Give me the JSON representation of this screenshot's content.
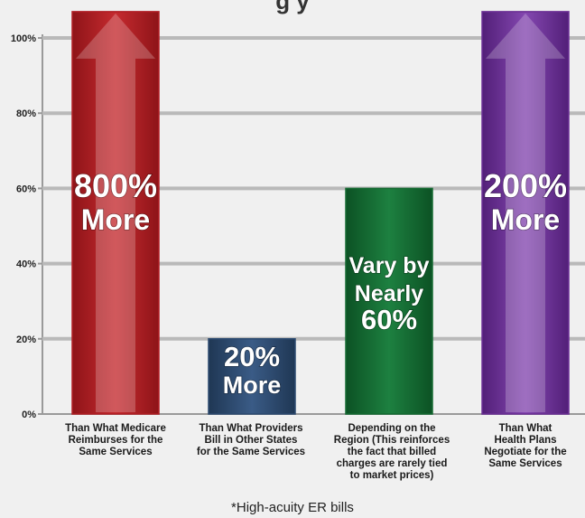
{
  "chart_data": {
    "type": "bar",
    "title": "",
    "visible_title_fragment": "g        y",
    "xlabel": "",
    "ylabel": "",
    "ylim": [
      0,
      100
    ],
    "yticks": [
      "0%",
      "20%",
      "40%",
      "60%",
      "80%",
      "100%"
    ],
    "grid": true,
    "categories": [
      "Than What Medicare\nReimburses for the\nSame Services",
      "Than What Providers\nBill in Other States\nfor the Same Services",
      "Depending on the\nRegion (This reinforces\nthe fact that billed\ncharges are rarely tied\nto market prices)",
      "Than What\nHealth Plans\nNegotiate for the\nSame Services"
    ],
    "values": [
      107,
      20,
      60,
      107
    ],
    "bar_labels": [
      [
        "800%",
        "More"
      ],
      [
        "20%",
        "More"
      ],
      [
        "Vary by",
        "Nearly",
        "60%"
      ],
      [
        "200%",
        "More"
      ]
    ],
    "bar_colors": [
      "#b01e24",
      "#2c4a70",
      "#156b32",
      "#6b2f95"
    ],
    "arrow_highlight": [
      true,
      false,
      false,
      true
    ],
    "footnote": "*High-acuity ER bills"
  }
}
